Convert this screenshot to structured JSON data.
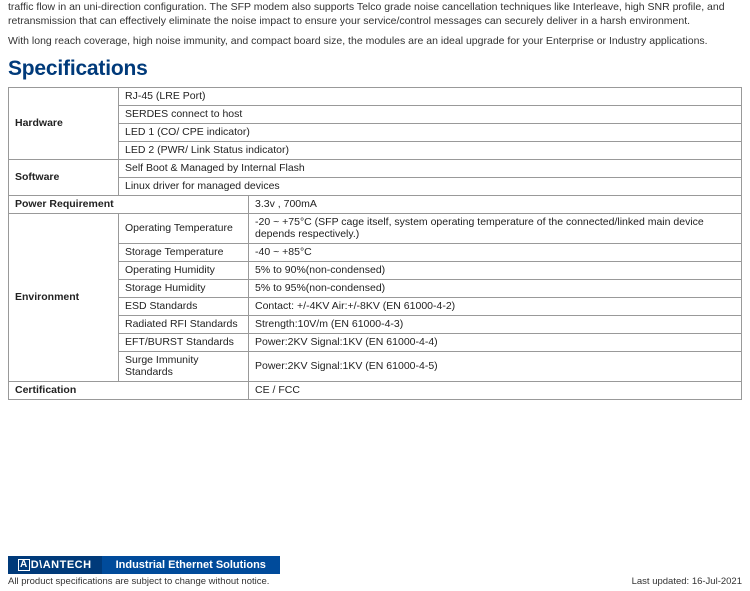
{
  "colors": {
    "heading": "#003a7a",
    "brand_bg": "#003a7a",
    "tagline_bg": "#004b9b",
    "border": "#999999"
  },
  "intro": {
    "p1": "traffic flow in an uni-direction configuration. The SFP modem also supports Telco grade noise cancellation techniques like Interleave, high SNR profile, and retransmission that can effectively eliminate the noise impact to ensure your service/control messages can securely deliver in a harsh environment.",
    "p2": "With long reach coverage, high noise immunity, and compact board size, the modules are an ideal upgrade for your Enterprise or Industry applications."
  },
  "spec_heading": "Specifications",
  "rows": {
    "hardware": {
      "label": "Hardware",
      "items": [
        "RJ-45 (LRE Port)",
        "SERDES connect to host",
        "LED 1 (CO/ CPE indicator)",
        "LED 2 (PWR/ Link Status indicator)"
      ]
    },
    "software": {
      "label": "Software",
      "items": [
        "Self Boot & Managed by Internal Flash",
        "Linux driver for managed devices"
      ]
    },
    "power": {
      "label": "Power Requirement",
      "value": "3.3v , 700mA"
    },
    "environment": {
      "label": "Environment",
      "items": [
        {
          "k": "Operating Temperature",
          "v": "-20 ~ +75°C (SFP cage itself, system operating temperature of the connected/linked main device depends respectively.)"
        },
        {
          "k": "Storage Temperature",
          "v": "-40 ~ +85°C"
        },
        {
          "k": "Operating Humidity",
          "v": "5% to 90%(non-condensed)"
        },
        {
          "k": "Storage Humidity",
          "v": "5% to 95%(non-condensed)"
        },
        {
          "k": "ESD Standards",
          "v": "Contact: +/-4KV Air:+/-8KV (EN 61000-4-2)"
        },
        {
          "k": "Radiated RFI Standards",
          "v": "Strength:10V/m (EN 61000-4-3)"
        },
        {
          "k": "EFT/BURST Standards",
          "v": "Power:2KV Signal:1KV (EN 61000-4-4)"
        },
        {
          "k": "Surge Immunity Standards",
          "v": "Power:2KV Signal:1KV (EN 61000-4-5)"
        }
      ]
    },
    "certification": {
      "label": "Certification",
      "value": "CE / FCC"
    }
  },
  "footer": {
    "brand": "ADVANTECH",
    "brand_first": "A",
    "brand_rest": "D\\ANTECH",
    "tagline": "Industrial Ethernet Solutions",
    "disclaimer": "All product specifications are subject to change without notice.",
    "updated": "Last updated: 16-Jul-2021"
  }
}
